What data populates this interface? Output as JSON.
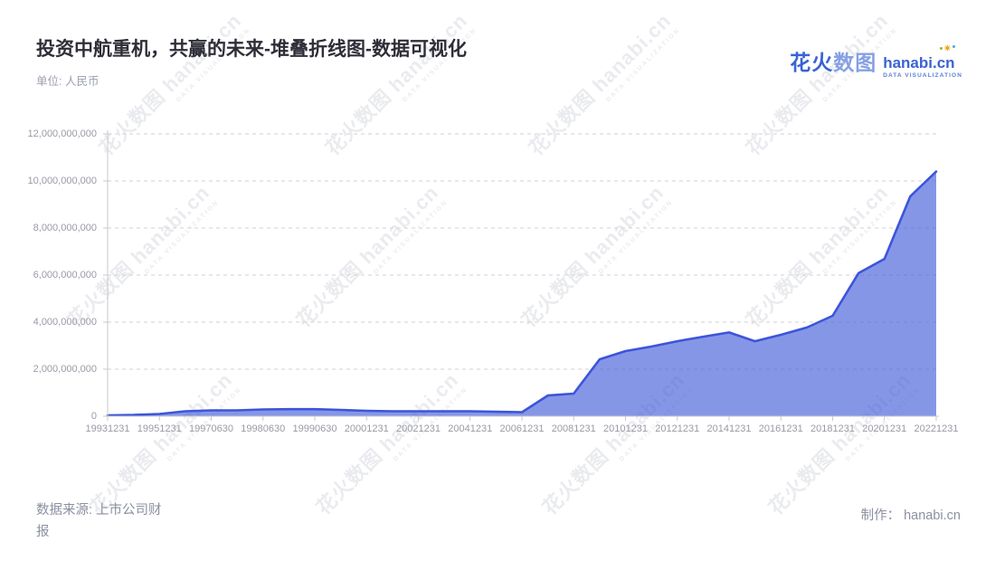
{
  "header": {
    "title": "投资中航重机，共赢的未来-堆叠折线图-数据可视化",
    "unit_label": "单位: 人民币"
  },
  "logo": {
    "zh_part1": "花火",
    "zh_part2": "数图",
    "domain": "hanabi.cn",
    "tagline": "DATA VISUALIZATION",
    "sparkle_glyph": "✷"
  },
  "watermark": {
    "line1": "花火数图 hanabi.cn",
    "line2": "DATA VISUALIZATION"
  },
  "footer": {
    "source": "数据来源: 上市公司财\n报",
    "credit": "制作： hanabi.cn"
  },
  "chart_data": {
    "type": "area",
    "title": "投资中航重机，共赢的未来-堆叠折线图-数据可视化",
    "ylabel": "单位: 人民币",
    "legend": "none",
    "grid": "horizontal-dashed",
    "ylim": [
      0,
      12000000000
    ],
    "y_ticks": [
      0,
      2000000000,
      4000000000,
      6000000000,
      8000000000,
      10000000000,
      12000000000
    ],
    "y_tick_labels": [
      "0",
      "2,000,000,000",
      "4,000,000,000",
      "6,000,000,000",
      "8,000,000,000",
      "10,000,000,000",
      "12,000,000,000"
    ],
    "x": [
      "19931231",
      "19941231",
      "19951231",
      "19961231",
      "19970630",
      "19971231",
      "19980630",
      "19981231",
      "19990630",
      "19991231",
      "20001231",
      "20011231",
      "20021231",
      "20031231",
      "20041231",
      "20051231",
      "20061231",
      "20071231",
      "20081231",
      "20091231",
      "20101231",
      "20111231",
      "20121231",
      "20131231",
      "20141231",
      "20151231",
      "20161231",
      "20171231",
      "20181231",
      "20191231",
      "20201231",
      "20211231",
      "20221231"
    ],
    "values": [
      40000000,
      55000000,
      95000000,
      210000000,
      250000000,
      250000000,
      290000000,
      300000000,
      300000000,
      270000000,
      230000000,
      210000000,
      210000000,
      210000000,
      210000000,
      190000000,
      170000000,
      880000000,
      960000000,
      2420000000,
      2770000000,
      2960000000,
      3190000000,
      3380000000,
      3560000000,
      3190000000,
      3460000000,
      3770000000,
      4270000000,
      6080000000,
      6690000000,
      9350000000,
      10400000000
    ],
    "label_every": 2,
    "x_axis_labels_shown": [
      "19931231",
      "19951231",
      "19970630",
      "19980630",
      "19990630",
      "20001231",
      "20021231",
      "20041231",
      "20061231",
      "20081231",
      "20101231",
      "20121231",
      "20141231",
      "20161231",
      "20181231",
      "20201231",
      "20221231"
    ],
    "colors": {
      "line": "#3c55d9",
      "fill": "rgba(60,85,217,0.62)",
      "axis": "#c9c9ce",
      "gridline": "#d2d2d6",
      "tick_label": "#9a9aa5"
    }
  }
}
